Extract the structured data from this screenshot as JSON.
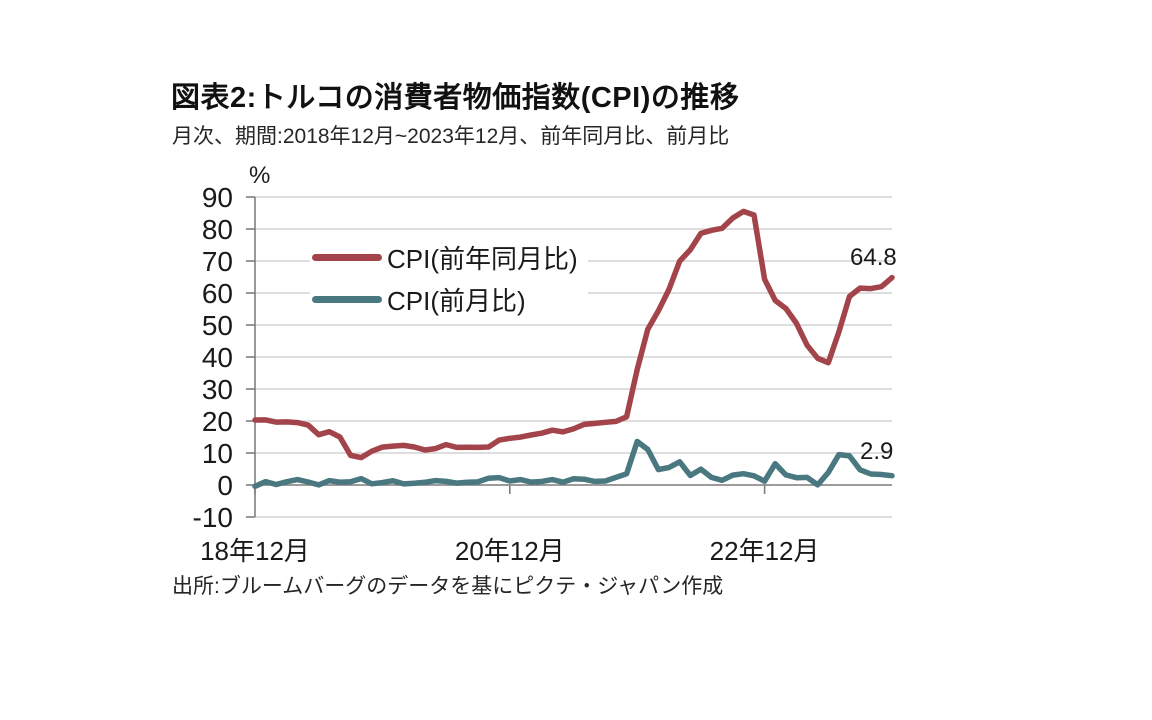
{
  "header": {
    "title": "図表2:トルコの消費者物価指数(CPI)の推移",
    "subtitle": "月次、期間:2018年12月~2023年12月、前年同月比、前月比"
  },
  "footer": {
    "source": "出所:ブルームバーグのデータを基にピクテ・ジャパン作成"
  },
  "annotations": {
    "yoy_end_label": "64.8",
    "mom_end_label": "2.9"
  },
  "colors": {
    "yoy_line": "#A3444B",
    "mom_line": "#4A7880",
    "grid": "#c9c9c9",
    "axis": "#7f7f7f",
    "text": "#1a1a1a"
  },
  "chart_data": {
    "type": "line",
    "title": "図表2:トルコの消費者物価指数(CPI)の推移",
    "subtitle": "月次、期間:2018年12月~2023年12月、前年同月比、前月比",
    "xlabel": "",
    "ylabel": "%",
    "ylim": [
      -10,
      90
    ],
    "ytick_step": 10,
    "ytick_labels_top_to_bottom": [
      "90",
      "80",
      "70",
      "60",
      "50",
      "40",
      "30",
      "20",
      "10",
      "0",
      "-10"
    ],
    "grid": "horizontal",
    "legend_position": "inside-top-left",
    "x": [
      "2018-12",
      "2019-01",
      "2019-02",
      "2019-03",
      "2019-04",
      "2019-05",
      "2019-06",
      "2019-07",
      "2019-08",
      "2019-09",
      "2019-10",
      "2019-11",
      "2019-12",
      "2020-01",
      "2020-02",
      "2020-03",
      "2020-04",
      "2020-05",
      "2020-06",
      "2020-07",
      "2020-08",
      "2020-09",
      "2020-10",
      "2020-11",
      "2020-12",
      "2021-01",
      "2021-02",
      "2021-03",
      "2021-04",
      "2021-05",
      "2021-06",
      "2021-07",
      "2021-08",
      "2021-09",
      "2021-10",
      "2021-11",
      "2021-12",
      "2022-01",
      "2022-02",
      "2022-03",
      "2022-04",
      "2022-05",
      "2022-06",
      "2022-07",
      "2022-08",
      "2022-09",
      "2022-10",
      "2022-11",
      "2022-12",
      "2023-01",
      "2023-02",
      "2023-03",
      "2023-04",
      "2023-05",
      "2023-06",
      "2023-07",
      "2023-08",
      "2023-09",
      "2023-10",
      "2023-11",
      "2023-12"
    ],
    "xtick_indices": [
      0,
      24,
      48
    ],
    "xtick_labels": [
      "18年12月",
      "20年12月",
      "22年12月"
    ],
    "series": [
      {
        "id": "yoy",
        "name": "CPI(前年同月比)",
        "color": "#A3444B",
        "end_label": "64.8",
        "values": [
          20.3,
          20.35,
          19.67,
          19.71,
          19.5,
          18.71,
          15.72,
          16.65,
          15.01,
          9.26,
          8.55,
          10.56,
          11.84,
          12.15,
          12.37,
          11.86,
          10.94,
          11.39,
          12.62,
          11.76,
          11.77,
          11.75,
          11.89,
          14.03,
          14.6,
          14.97,
          15.61,
          16.19,
          17.14,
          16.59,
          17.53,
          18.95,
          19.25,
          19.58,
          19.89,
          21.31,
          36.08,
          48.69,
          54.44,
          61.14,
          69.97,
          73.5,
          78.62,
          79.6,
          80.21,
          83.45,
          85.51,
          84.39,
          64.27,
          57.68,
          55.18,
          50.51,
          43.68,
          39.59,
          38.21,
          47.83,
          58.94,
          61.53,
          61.36,
          61.98,
          64.8
        ]
      },
      {
        "id": "mom",
        "name": "CPI(前月比)",
        "color": "#4A7880",
        "end_label": "2.9",
        "values": [
          -0.4,
          1.06,
          0.16,
          1.03,
          1.69,
          0.95,
          0.03,
          1.36,
          0.86,
          0.99,
          2.0,
          0.38,
          0.74,
          1.35,
          0.35,
          0.57,
          0.85,
          1.36,
          1.13,
          0.58,
          0.86,
          0.97,
          2.13,
          2.3,
          1.25,
          1.68,
          0.91,
          1.08,
          1.68,
          0.89,
          1.94,
          1.8,
          1.12,
          1.25,
          2.39,
          3.51,
          13.58,
          11.1,
          4.81,
          5.46,
          7.25,
          2.98,
          4.95,
          2.37,
          1.46,
          3.08,
          3.54,
          2.88,
          1.18,
          6.65,
          3.15,
          2.29,
          2.39,
          0.04,
          3.92,
          9.49,
          9.09,
          4.75,
          3.43,
          3.28,
          2.9
        ]
      }
    ]
  }
}
